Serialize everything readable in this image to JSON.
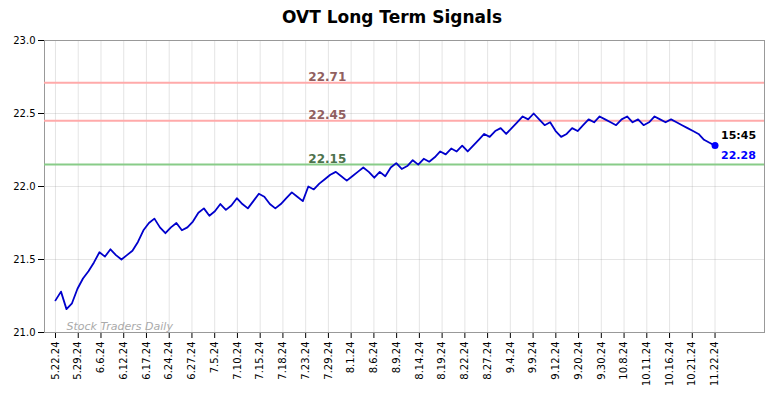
{
  "chart_data": {
    "type": "line",
    "title": "OVT Long Term Signals",
    "color": "#0000cc",
    "x": [
      0,
      1,
      2,
      3,
      4,
      5,
      6,
      7,
      8,
      9,
      10,
      11,
      12,
      13,
      14,
      15,
      16,
      17,
      18,
      19,
      20,
      21,
      22,
      23,
      24,
      25,
      26,
      27,
      28,
      29,
      30,
      31,
      32,
      33,
      34,
      35,
      36,
      37,
      38,
      39,
      40,
      41,
      42,
      43,
      44,
      45,
      46,
      47,
      48,
      49,
      50,
      51,
      52,
      53,
      54,
      55,
      56,
      57,
      58,
      59,
      60,
      61,
      62,
      63,
      64,
      65,
      66,
      67,
      68,
      69,
      70,
      71,
      72,
      73,
      74,
      75,
      76,
      77,
      78,
      79,
      80,
      81,
      82,
      83,
      84,
      85,
      86,
      87,
      88,
      89,
      90,
      91,
      92,
      93,
      94,
      95,
      96,
      97,
      98,
      99,
      100,
      101,
      102,
      103,
      104,
      105,
      106,
      107,
      108,
      109,
      110,
      111,
      112,
      113,
      114,
      115,
      116,
      117,
      118,
      119,
      120
    ],
    "values": [
      21.22,
      21.28,
      21.16,
      21.2,
      21.3,
      21.37,
      21.42,
      21.48,
      21.55,
      21.52,
      21.57,
      21.53,
      21.5,
      21.53,
      21.56,
      21.62,
      21.7,
      21.75,
      21.78,
      21.72,
      21.68,
      21.72,
      21.75,
      21.7,
      21.72,
      21.76,
      21.82,
      21.85,
      21.8,
      21.83,
      21.88,
      21.84,
      21.87,
      21.92,
      21.88,
      21.85,
      21.9,
      21.95,
      21.93,
      21.88,
      21.85,
      21.88,
      21.92,
      21.96,
      21.93,
      21.9,
      22.0,
      21.98,
      22.02,
      22.05,
      22.08,
      22.1,
      22.07,
      22.04,
      22.07,
      22.1,
      22.13,
      22.1,
      22.06,
      22.1,
      22.07,
      22.13,
      22.16,
      22.12,
      22.14,
      22.18,
      22.15,
      22.19,
      22.17,
      22.2,
      22.24,
      22.22,
      22.26,
      22.24,
      22.28,
      22.24,
      22.28,
      22.32,
      22.36,
      22.34,
      22.38,
      22.4,
      22.36,
      22.4,
      22.44,
      22.48,
      22.46,
      22.5,
      22.46,
      22.42,
      22.44,
      22.38,
      22.34,
      22.36,
      22.4,
      22.38,
      22.42,
      22.46,
      22.44,
      22.48,
      22.46,
      22.44,
      22.42,
      22.46,
      22.48,
      22.44,
      22.46,
      22.42,
      22.44,
      22.48,
      22.46,
      22.44,
      22.46,
      22.44,
      22.42,
      22.4,
      22.38,
      22.36,
      22.32,
      22.3,
      22.28
    ],
    "xlim": [
      -2,
      129
    ],
    "xticks": [
      {
        "value": 0,
        "label": "5.22.24"
      },
      {
        "value": 4.137931034482759,
        "label": "5.29.24"
      },
      {
        "value": 8.275862068965518,
        "label": "6.6.24"
      },
      {
        "value": 12.413793103448276,
        "label": "6.12.24"
      },
      {
        "value": 16.551724137931036,
        "label": "6.17.24"
      },
      {
        "value": 20.689655172413794,
        "label": "6.24.24"
      },
      {
        "value": 24.82758620689655,
        "label": "6.27.24"
      },
      {
        "value": 28.96551724137931,
        "label": "7.5.24"
      },
      {
        "value": 33.10344827586207,
        "label": "7.10.24"
      },
      {
        "value": 37.241379310344826,
        "label": "7.15.24"
      },
      {
        "value": 41.37931034482759,
        "label": "7.18.24"
      },
      {
        "value": 45.51724137931034,
        "label": "7.23.24"
      },
      {
        "value": 49.6551724137931,
        "label": "7.29.24"
      },
      {
        "value": 53.793103448275865,
        "label": "8.1.24"
      },
      {
        "value": 57.93103448275862,
        "label": "8.6.24"
      },
      {
        "value": 62.06896551724138,
        "label": "8.9.24"
      },
      {
        "value": 66.20689655172414,
        "label": "8.14.24"
      },
      {
        "value": 70.34482758620689,
        "label": "8.19.24"
      },
      {
        "value": 74.48275862068965,
        "label": "8.22.24"
      },
      {
        "value": 78.62068965517241,
        "label": "8.27.24"
      },
      {
        "value": 82.75862068965517,
        "label": "9.4.24"
      },
      {
        "value": 86.89655172413794,
        "label": "9.9.24"
      },
      {
        "value": 91.03448275862068,
        "label": "9.12.24"
      },
      {
        "value": 95.17241379310344,
        "label": "9.20.24"
      },
      {
        "value": 99.3103448275862,
        "label": "9.30.24"
      },
      {
        "value": 103.44827586206897,
        "label": "10.8.24"
      },
      {
        "value": 107.58620689655173,
        "label": "10.11.24"
      },
      {
        "value": 111.72413793103448,
        "label": "10.16.24"
      },
      {
        "value": 115.86206896551724,
        "label": "10.21.24"
      },
      {
        "value": 120,
        "label": "11.22.24"
      }
    ],
    "ylim": [
      21.0,
      23.0
    ],
    "yticks": [
      {
        "value": 21,
        "label": "21.0"
      },
      21.5,
      {
        "value": 22,
        "label": "22.0"
      },
      22.5,
      {
        "value": 23,
        "label": "23.0"
      }
    ],
    "grid": true,
    "hlines": [
      {
        "value": 22.71,
        "label": "22.71",
        "color": "#ffaaaa"
      },
      {
        "value": 22.45,
        "label": "22.45",
        "color": "#ffaaaa"
      },
      {
        "value": 22.15,
        "label": "22.15",
        "color": "#88cc88"
      }
    ],
    "end_point": {
      "x": 120,
      "y": 22.28,
      "color": "#0000ff"
    },
    "annotations": [
      {
        "text": "15:45",
        "x": 120,
        "y": 22.28
      },
      {
        "text": "22.28",
        "x": 120,
        "y": 22.28
      },
      {
        "text": "Stock Traders Daily",
        "x": 2,
        "y": 21.02
      }
    ]
  }
}
